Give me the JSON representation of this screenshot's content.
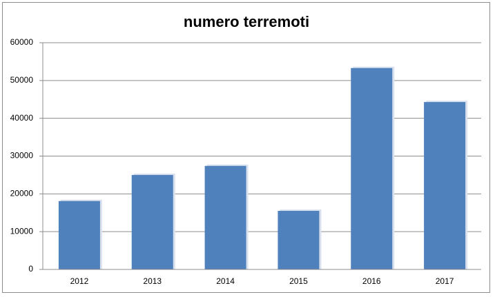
{
  "chart_data": {
    "type": "bar",
    "title": "numero terremoti",
    "categories": [
      "2012",
      "2013",
      "2014",
      "2015",
      "2016",
      "2017"
    ],
    "values": [
      18100,
      25000,
      27400,
      15500,
      53300,
      44300
    ],
    "color": "#4f81bd",
    "ylim": [
      0,
      60000
    ],
    "yticks": [
      0,
      10000,
      20000,
      30000,
      40000,
      50000,
      60000
    ],
    "grid": true
  }
}
